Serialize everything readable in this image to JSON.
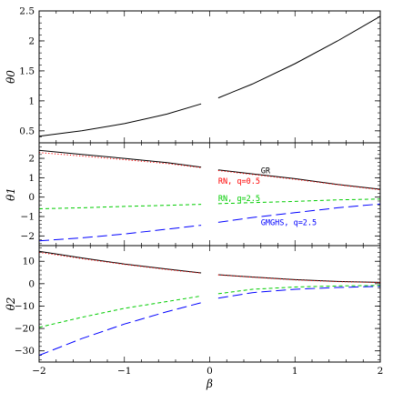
{
  "chart_data": [
    {
      "type": "line",
      "ylabel": "θ0",
      "x_range": [
        -2,
        2
      ],
      "ylim": [
        0.3,
        2.5
      ],
      "yticks": [
        0.5,
        1,
        1.5,
        2,
        2.5
      ],
      "ytick_labels": [
        "0.5",
        "1",
        "1.5",
        "2",
        "2.5"
      ],
      "series": [
        {
          "color": "#000000",
          "dash": "solid",
          "x": [
            -2,
            -1.5,
            -1,
            -0.5,
            -0.1,
            0.1,
            0.5,
            1,
            1.5,
            2
          ],
          "y": [
            0.41,
            0.5,
            0.62,
            0.78,
            0.95,
            1.05,
            1.28,
            1.62,
            2.0,
            2.41
          ]
        }
      ]
    },
    {
      "type": "line",
      "ylabel": "θ1",
      "x_range": [
        -2,
        2
      ],
      "ylim": [
        -2.5,
        2.8
      ],
      "yticks": [
        -2,
        -1,
        0,
        1,
        2
      ],
      "ytick_labels": [
        "−2",
        "−1",
        "0",
        "1",
        "2"
      ],
      "annotations": [
        {
          "text": "GR",
          "color": "#000000",
          "x": 0.6,
          "y": 1.22
        },
        {
          "text": "RN, q=0.5",
          "color": "#ff0000",
          "x": 0.1,
          "y": 0.68
        },
        {
          "text": "RN, q=2.5",
          "color": "#00cc00",
          "x": 0.1,
          "y": -0.2
        },
        {
          "text": "GMGHS, q=2.5",
          "color": "#0000ff",
          "x": 0.6,
          "y": -1.45
        }
      ],
      "series": [
        {
          "name": "GR",
          "color": "#000000",
          "dash": "solid",
          "x": [
            -2,
            -1.5,
            -1,
            -0.5,
            -0.1,
            0.1,
            0.5,
            1,
            1.5,
            2
          ],
          "y": [
            2.41,
            2.2,
            2.0,
            1.78,
            1.55,
            1.4,
            1.2,
            0.95,
            0.65,
            0.41
          ]
        },
        {
          "name": "RN, q=0.5",
          "color": "#ff0000",
          "dash": "dotted",
          "x": [
            -2,
            -1.5,
            -1,
            -0.5,
            -0.1,
            0.1,
            0.5,
            1,
            1.5,
            2
          ],
          "y": [
            2.3,
            2.12,
            1.93,
            1.73,
            1.52,
            1.37,
            1.17,
            0.92,
            0.64,
            0.38
          ]
        },
        {
          "name": "RN, q=2.5",
          "color": "#00cc00",
          "dash": "short-dash",
          "x": [
            -2,
            -1.5,
            -1,
            -0.5,
            -0.1,
            0.1,
            0.5,
            1,
            1.5,
            2
          ],
          "y": [
            -0.6,
            -0.55,
            -0.48,
            -0.42,
            -0.37,
            -0.34,
            -0.28,
            -0.22,
            -0.14,
            -0.1
          ]
        },
        {
          "name": "GMGHS, q=2.5",
          "color": "#0000ff",
          "dash": "long-dash",
          "x": [
            -2,
            -1.5,
            -1,
            -0.5,
            -0.1,
            0.1,
            0.5,
            1,
            1.5,
            2
          ],
          "y": [
            -2.25,
            -2.1,
            -1.9,
            -1.65,
            -1.45,
            -1.3,
            -1.05,
            -0.8,
            -0.55,
            -0.35
          ]
        }
      ]
    },
    {
      "type": "line",
      "ylabel": "θ2",
      "xlabel": "β",
      "x_range": [
        -2,
        2
      ],
      "ylim": [
        -35,
        17
      ],
      "yticks": [
        -30,
        -20,
        -10,
        0,
        10
      ],
      "ytick_labels": [
        "−30",
        "−20",
        "−10",
        "0",
        "10"
      ],
      "xticks": [
        -2,
        -1,
        0,
        1,
        2
      ],
      "xtick_labels": [
        "−2",
        "−1",
        "0",
        "1",
        "2"
      ],
      "series": [
        {
          "name": "GR",
          "color": "#000000",
          "dash": "solid",
          "x": [
            -2,
            -1.5,
            -1,
            -0.5,
            -0.1,
            0.1,
            0.5,
            1,
            1.5,
            2
          ],
          "y": [
            14.5,
            11.5,
            8.8,
            6.5,
            4.8,
            4.0,
            3.0,
            1.8,
            1.0,
            0.6
          ]
        },
        {
          "name": "RN, q=0.5",
          "color": "#ff0000",
          "dash": "dotted",
          "x": [
            -2,
            -1.5,
            -1,
            -0.5,
            -0.1,
            0.1,
            0.5,
            1,
            1.5,
            2
          ],
          "y": [
            14.0,
            11.2,
            8.6,
            6.3,
            4.7,
            3.9,
            2.9,
            1.7,
            0.9,
            0.5
          ]
        },
        {
          "name": "RN, q=2.5",
          "color": "#00cc00",
          "dash": "short-dash",
          "x": [
            -2,
            -1.5,
            -1,
            -0.5,
            -0.1,
            0.1,
            0.5,
            1,
            1.5,
            2
          ],
          "y": [
            -19.5,
            -15,
            -11,
            -8,
            -5.5,
            -4.5,
            -2.5,
            -1.5,
            -1.0,
            -0.8
          ]
        },
        {
          "name": "GMGHS, q=2.5",
          "color": "#0000ff",
          "dash": "long-dash",
          "x": [
            -2,
            -1.5,
            -1,
            -0.5,
            -0.1,
            0.1,
            0.5,
            1,
            1.5,
            2
          ],
          "y": [
            -32,
            -24.5,
            -18,
            -12.5,
            -8.5,
            -6.5,
            -4,
            -2.5,
            -1.7,
            -1.2
          ]
        }
      ]
    }
  ]
}
